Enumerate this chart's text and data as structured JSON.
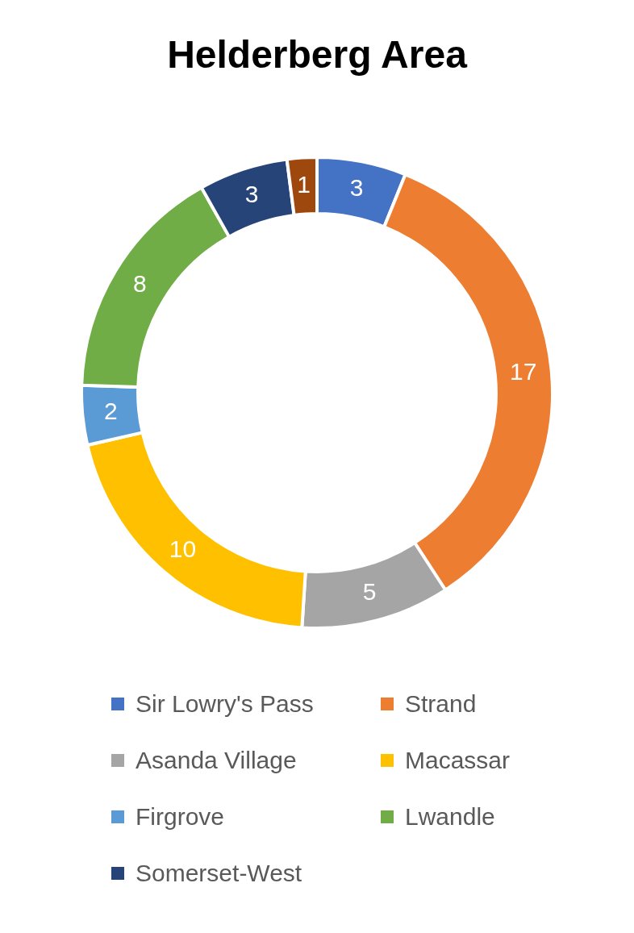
{
  "chart_data": {
    "type": "donut",
    "title": "Helderberg Area",
    "categories": [
      "Sir Lowry's Pass",
      "Strand",
      "Asanda Village",
      "Macassar",
      "Firgrove",
      "Lwandle",
      "Somerset-West",
      null
    ],
    "values": [
      3,
      17,
      5,
      10,
      2,
      8,
      3,
      1
    ],
    "colors": [
      "#4472c4",
      "#ed7d31",
      "#a5a5a5",
      "#ffc000",
      "#5b9bd5",
      "#70ad47",
      "#264478",
      "#9e480e"
    ],
    "data_labels": true,
    "legend": "bottom"
  }
}
